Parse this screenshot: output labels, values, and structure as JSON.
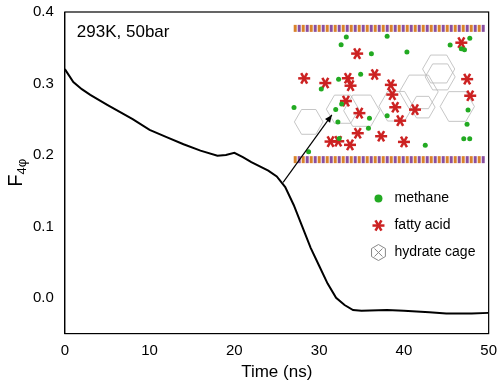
{
  "chart_data": {
    "type": "line",
    "annotation": "293K, 50bar",
    "x_label": "Time (ns)",
    "y_label": "F4φ",
    "x": [
      0,
      1,
      2,
      3,
      5,
      8,
      10,
      12,
      14,
      16,
      18,
      19,
      20,
      21,
      22,
      24,
      25,
      26,
      27,
      28,
      29,
      30,
      31,
      32,
      33,
      34,
      35,
      38,
      40,
      43,
      45,
      48,
      50
    ],
    "values": [
      0.32,
      0.302,
      0.292,
      0.284,
      0.27,
      0.25,
      0.235,
      0.225,
      0.215,
      0.206,
      0.199,
      0.2,
      0.203,
      0.197,
      0.19,
      0.178,
      0.17,
      0.155,
      0.13,
      0.1,
      0.07,
      0.045,
      0.02,
      0.0,
      -0.01,
      -0.017,
      -0.018,
      -0.017,
      -0.018,
      -0.02,
      -0.022,
      -0.022,
      -0.021
    ],
    "color": "#000000",
    "xlim": [
      0,
      50
    ],
    "xticks": [
      0,
      10,
      20,
      30,
      40,
      50
    ],
    "ylim": [
      -0.05,
      0.4
    ],
    "yticks": [
      {
        "value": 0,
        "label": "0.0"
      },
      0.1,
      0.2,
      0.3,
      0.4
    ],
    "grid": false,
    "inset_legend": [
      {
        "label": "methane",
        "color": "#22aa22",
        "marker": "circle"
      },
      {
        "label": "fatty acid",
        "color": "#cc2222",
        "marker": "star"
      },
      {
        "label": "hydrate cage",
        "color": "#888888",
        "marker": "cage"
      }
    ]
  }
}
